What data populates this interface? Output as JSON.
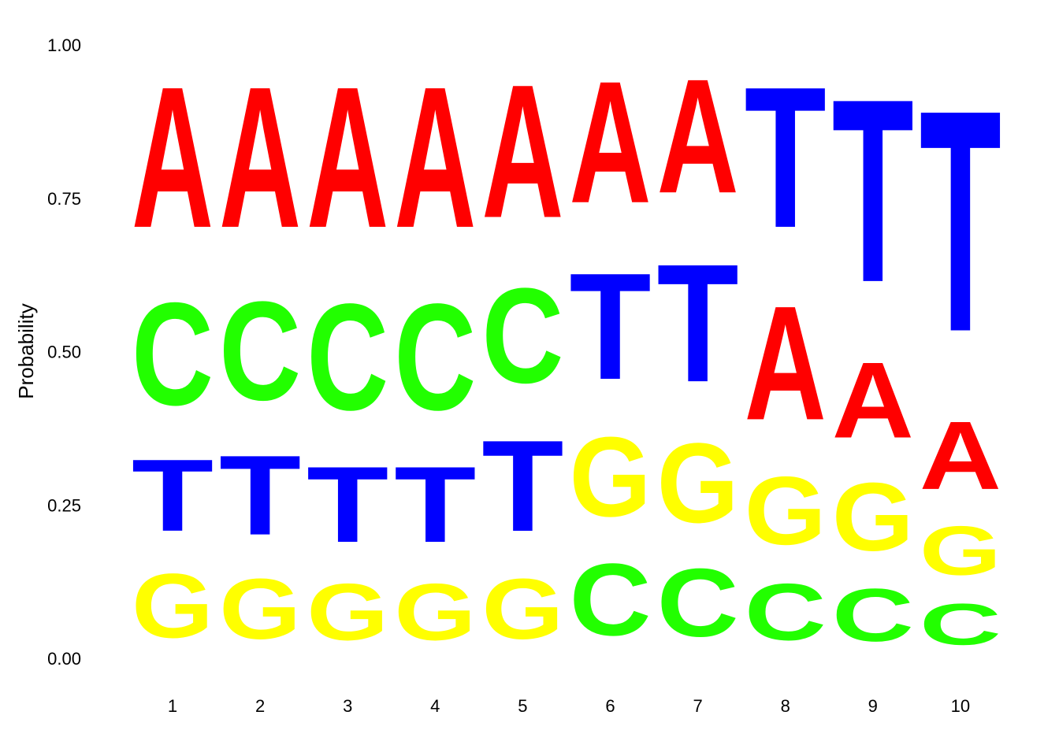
{
  "chart_data": {
    "type": "sequence-logo",
    "title": "",
    "xlabel": "",
    "ylabel": "Probability",
    "ylim": [
      0,
      1
    ],
    "yticks": [
      "0.00",
      "0.25",
      "0.50",
      "0.75",
      "1.00"
    ],
    "grid": false,
    "colors": {
      "A": "#ff0000",
      "C": "#22ff00",
      "G": "#ffff00",
      "T": "#0000ff"
    },
    "positions": [
      {
        "label": "1",
        "stack": [
          {
            "letter": "G",
            "value": 0.17
          },
          {
            "letter": "T",
            "value": 0.19
          },
          {
            "letter": "C",
            "value": 0.27
          },
          {
            "letter": "A",
            "value": 0.37
          }
        ]
      },
      {
        "label": "2",
        "stack": [
          {
            "letter": "G",
            "value": 0.16
          },
          {
            "letter": "T",
            "value": 0.21
          },
          {
            "letter": "C",
            "value": 0.26
          },
          {
            "letter": "A",
            "value": 0.37
          }
        ]
      },
      {
        "label": "3",
        "stack": [
          {
            "letter": "G",
            "value": 0.15
          },
          {
            "letter": "T",
            "value": 0.2
          },
          {
            "letter": "C",
            "value": 0.28
          },
          {
            "letter": "A",
            "value": 0.37
          }
        ]
      },
      {
        "label": "4",
        "stack": [
          {
            "letter": "G",
            "value": 0.15
          },
          {
            "letter": "T",
            "value": 0.2
          },
          {
            "letter": "C",
            "value": 0.28
          },
          {
            "letter": "A",
            "value": 0.37
          }
        ]
      },
      {
        "label": "5",
        "stack": [
          {
            "letter": "G",
            "value": 0.16
          },
          {
            "letter": "T",
            "value": 0.24
          },
          {
            "letter": "C",
            "value": 0.25
          },
          {
            "letter": "A",
            "value": 0.35
          }
        ]
      },
      {
        "label": "6",
        "stack": [
          {
            "letter": "C",
            "value": 0.19
          },
          {
            "letter": "G",
            "value": 0.21
          },
          {
            "letter": "T",
            "value": 0.28
          },
          {
            "letter": "A",
            "value": 0.32
          }
        ]
      },
      {
        "label": "7",
        "stack": [
          {
            "letter": "C",
            "value": 0.18
          },
          {
            "letter": "G",
            "value": 0.21
          },
          {
            "letter": "T",
            "value": 0.31
          },
          {
            "letter": "A",
            "value": 0.3
          }
        ]
      },
      {
        "label": "8",
        "stack": [
          {
            "letter": "C",
            "value": 0.15
          },
          {
            "letter": "G",
            "value": 0.18
          },
          {
            "letter": "A",
            "value": 0.3
          },
          {
            "letter": "T",
            "value": 0.37
          }
        ]
      },
      {
        "label": "9",
        "stack": [
          {
            "letter": "C",
            "value": 0.14
          },
          {
            "letter": "G",
            "value": 0.18
          },
          {
            "letter": "A",
            "value": 0.2
          },
          {
            "letter": "T",
            "value": 0.48
          }
        ]
      },
      {
        "label": "10",
        "stack": [
          {
            "letter": "C",
            "value": 0.11
          },
          {
            "letter": "G",
            "value": 0.13
          },
          {
            "letter": "A",
            "value": 0.18
          },
          {
            "letter": "T",
            "value": 0.58
          }
        ]
      }
    ]
  }
}
